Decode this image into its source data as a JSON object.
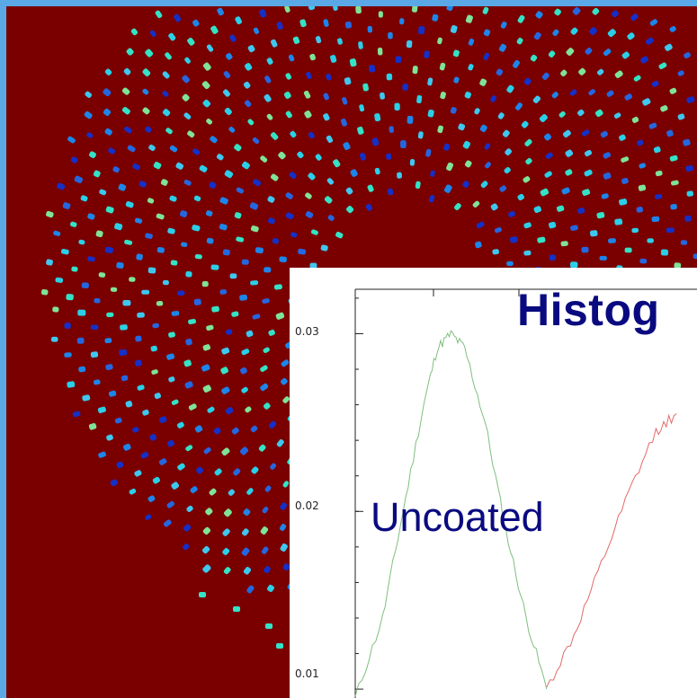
{
  "image": {
    "description_color_background": "#7a0000",
    "frame_color": "#5aa9e6",
    "dot_colors": [
      "#2ad0e8",
      "#34e3c6",
      "#2467e0",
      "#1430c8",
      "#3ec8f0",
      "#7fe39a",
      "#1c86ea"
    ]
  },
  "chart_data": {
    "type": "line",
    "title": "Histog",
    "annotations": [
      "Uncoated"
    ],
    "xlabel": "",
    "ylabel": "",
    "y_ticks": [
      "0.03",
      "0.02",
      "0.01"
    ],
    "ylim": [
      0.0095,
      0.0325
    ],
    "series": [
      {
        "color": "#7fbf7f",
        "points": [
          [
            0.0,
            0.0095
          ],
          [
            0.2,
            0.014
          ],
          [
            0.35,
            0.02
          ],
          [
            0.5,
            0.026
          ],
          [
            0.6,
            0.0292
          ],
          [
            0.7,
            0.03
          ],
          [
            0.8,
            0.0292
          ],
          [
            0.95,
            0.025
          ],
          [
            1.1,
            0.019
          ],
          [
            1.25,
            0.014
          ],
          [
            1.4,
            0.01
          ]
        ]
      },
      {
        "color": "#e26a6a",
        "points": [
          [
            1.4,
            0.01
          ],
          [
            1.6,
            0.013
          ],
          [
            1.8,
            0.017
          ],
          [
            2.0,
            0.021
          ],
          [
            2.2,
            0.0245
          ],
          [
            2.35,
            0.0255
          ]
        ]
      }
    ]
  }
}
